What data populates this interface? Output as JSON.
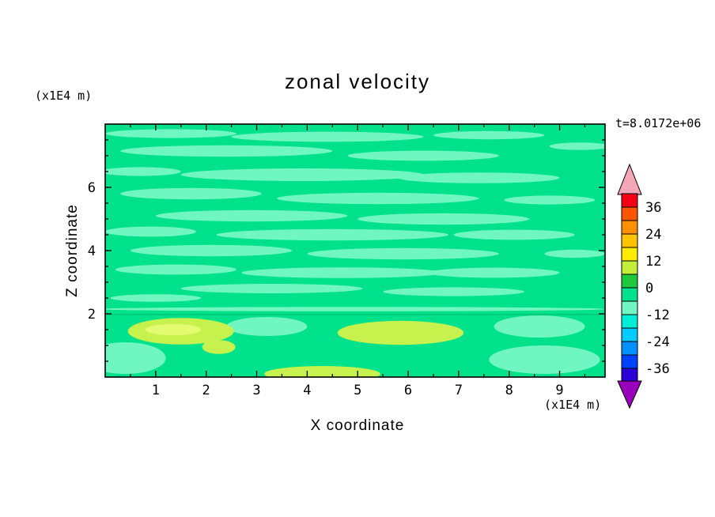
{
  "chart_data": {
    "type": "filled-contour",
    "title": "zonal velocity",
    "timestamp": "t=8.0172e+06",
    "xlabel": "X coordinate",
    "ylabel": "Z coordinate",
    "x_units": "(x1E4 m)",
    "y_units": "(x1E4 m)",
    "xlim": [
      0,
      9.9
    ],
    "ylim": [
      0,
      8
    ],
    "xticks": [
      1,
      2,
      3,
      4,
      5,
      6,
      7,
      8,
      9
    ],
    "yticks": [
      2,
      4,
      6
    ],
    "minor_tick_step": 0.5,
    "grid": false,
    "legend_position": "right-colorbar",
    "field": {
      "base_color": "#00E18C",
      "contour_line": {
        "z": 2.0,
        "color": "#00C878"
      },
      "palette": {
        "mint": "#6FF6C2",
        "lime": "#C7F14C",
        "core": "#E4FA70"
      },
      "blobs": [
        {
          "x": 1.3,
          "z": 7.7,
          "rx": 1.3,
          "rz": 0.14,
          "c": "mint"
        },
        {
          "x": 4.4,
          "z": 7.6,
          "rx": 1.9,
          "rz": 0.16,
          "c": "mint"
        },
        {
          "x": 7.6,
          "z": 7.65,
          "rx": 1.1,
          "rz": 0.13,
          "c": "mint"
        },
        {
          "x": 9.4,
          "z": 7.3,
          "rx": 0.6,
          "rz": 0.12,
          "c": "mint"
        },
        {
          "x": 2.4,
          "z": 7.15,
          "rx": 2.1,
          "rz": 0.18,
          "c": "mint"
        },
        {
          "x": 6.3,
          "z": 7.0,
          "rx": 1.5,
          "rz": 0.16,
          "c": "mint"
        },
        {
          "x": 0.7,
          "z": 6.5,
          "rx": 0.8,
          "rz": 0.14,
          "c": "mint"
        },
        {
          "x": 3.9,
          "z": 6.4,
          "rx": 2.4,
          "rz": 0.2,
          "c": "mint"
        },
        {
          "x": 7.4,
          "z": 6.3,
          "rx": 1.6,
          "rz": 0.17,
          "c": "mint"
        },
        {
          "x": 1.7,
          "z": 5.8,
          "rx": 1.4,
          "rz": 0.18,
          "c": "mint"
        },
        {
          "x": 5.4,
          "z": 5.65,
          "rx": 2.0,
          "rz": 0.18,
          "c": "mint"
        },
        {
          "x": 8.8,
          "z": 5.6,
          "rx": 0.9,
          "rz": 0.14,
          "c": "mint"
        },
        {
          "x": 2.9,
          "z": 5.1,
          "rx": 1.9,
          "rz": 0.18,
          "c": "mint"
        },
        {
          "x": 6.7,
          "z": 5.0,
          "rx": 1.7,
          "rz": 0.18,
          "c": "mint"
        },
        {
          "x": 0.9,
          "z": 4.6,
          "rx": 0.9,
          "rz": 0.16,
          "c": "mint"
        },
        {
          "x": 4.5,
          "z": 4.5,
          "rx": 2.3,
          "rz": 0.18,
          "c": "mint"
        },
        {
          "x": 8.1,
          "z": 4.5,
          "rx": 1.2,
          "rz": 0.16,
          "c": "mint"
        },
        {
          "x": 2.1,
          "z": 4.0,
          "rx": 1.6,
          "rz": 0.18,
          "c": "mint"
        },
        {
          "x": 5.9,
          "z": 3.9,
          "rx": 1.9,
          "rz": 0.18,
          "c": "mint"
        },
        {
          "x": 9.3,
          "z": 3.9,
          "rx": 0.6,
          "rz": 0.13,
          "c": "mint"
        },
        {
          "x": 1.4,
          "z": 3.4,
          "rx": 1.2,
          "rz": 0.16,
          "c": "mint"
        },
        {
          "x": 4.7,
          "z": 3.3,
          "rx": 2.0,
          "rz": 0.17,
          "c": "mint"
        },
        {
          "x": 7.7,
          "z": 3.3,
          "rx": 1.3,
          "rz": 0.16,
          "c": "mint"
        },
        {
          "x": 3.3,
          "z": 2.8,
          "rx": 1.8,
          "rz": 0.15,
          "c": "mint"
        },
        {
          "x": 6.9,
          "z": 2.7,
          "rx": 1.4,
          "rz": 0.14,
          "c": "mint"
        },
        {
          "x": 1.0,
          "z": 2.5,
          "rx": 0.9,
          "rz": 0.12,
          "c": "mint"
        },
        {
          "x": 4.9,
          "z": 2.15,
          "rx": 5.0,
          "rz": 0.07,
          "c": "mint"
        },
        {
          "x": 0.4,
          "z": 0.6,
          "rx": 0.8,
          "rz": 0.5,
          "c": "mint"
        },
        {
          "x": 8.7,
          "z": 0.55,
          "rx": 1.1,
          "rz": 0.45,
          "c": "mint"
        },
        {
          "x": 8.6,
          "z": 1.6,
          "rx": 0.9,
          "rz": 0.35,
          "c": "mint"
        },
        {
          "x": 3.2,
          "z": 1.6,
          "rx": 0.8,
          "rz": 0.3,
          "c": "mint"
        },
        {
          "x": 1.5,
          "z": 1.45,
          "rx": 1.05,
          "rz": 0.42,
          "c": "lime"
        },
        {
          "x": 2.25,
          "z": 0.95,
          "rx": 0.33,
          "rz": 0.22,
          "c": "lime"
        },
        {
          "x": 5.85,
          "z": 1.4,
          "rx": 1.25,
          "rz": 0.38,
          "c": "lime"
        },
        {
          "x": 4.3,
          "z": 0.1,
          "rx": 1.15,
          "rz": 0.25,
          "c": "lime"
        },
        {
          "x": 1.35,
          "z": 1.5,
          "rx": 0.55,
          "rz": 0.18,
          "c": "core"
        }
      ]
    },
    "colorbar": {
      "labels": [
        "36",
        "24",
        "12",
        "0",
        "-12",
        "-24",
        "-36"
      ],
      "cells_top_to_bottom": [
        "#F30016",
        "#FF5500",
        "#FF9000",
        "#FFC300",
        "#FFEC00",
        "#C3EF3C",
        "#1FC93E",
        "#00E18C",
        "#6FF6C2",
        "#00EFD4",
        "#00CCFF",
        "#0090FF",
        "#0040FF",
        "#2B00D6"
      ],
      "arrow_top": "#F2A6B6",
      "arrow_bottom": "#9900BB"
    }
  }
}
